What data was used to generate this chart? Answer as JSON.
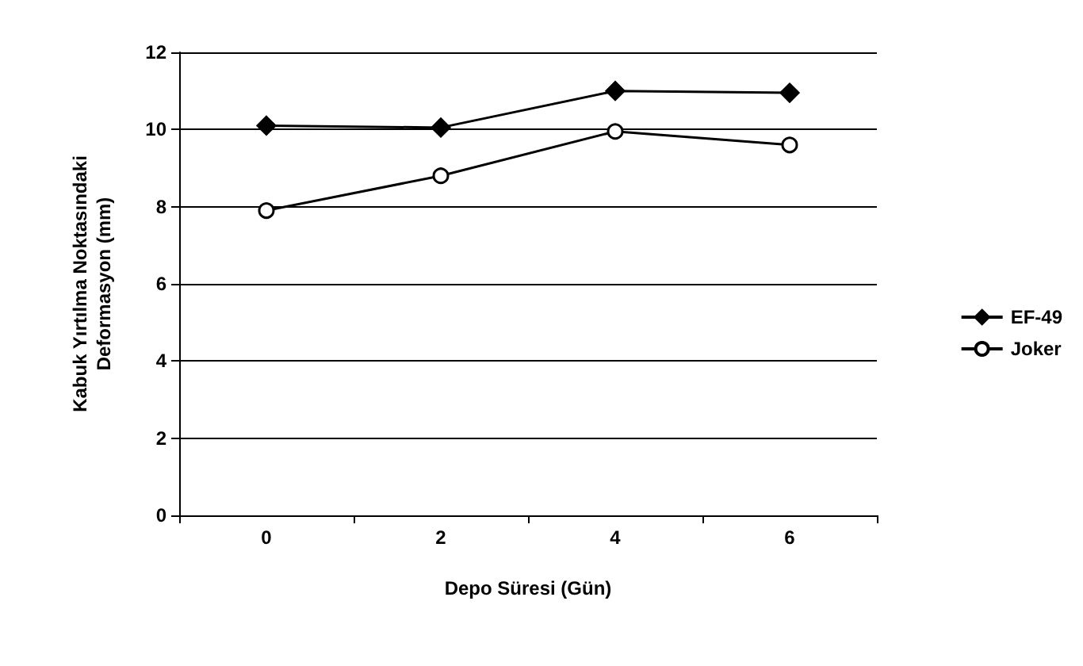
{
  "chart_data": {
    "type": "line",
    "xlabel": "Depo Süresi (Gün)",
    "ylabel": "Kabuk Yırtılma Noktasındaki\nDeformasyon (mm)",
    "categories": [
      "0",
      "2",
      "4",
      "6"
    ],
    "series": [
      {
        "name": "EF-49",
        "color": "#000000",
        "marker": "diamond",
        "values": [
          10.1,
          10.05,
          11.0,
          10.95
        ]
      },
      {
        "name": "Joker",
        "color": "#000000",
        "marker": "circle",
        "values": [
          7.9,
          8.8,
          9.95,
          9.6
        ]
      }
    ],
    "ylim": [
      0,
      12
    ],
    "yticks": [
      0,
      2,
      4,
      6,
      8,
      10,
      12
    ],
    "grid": "y",
    "legend": "right",
    "line_style": "solid"
  }
}
